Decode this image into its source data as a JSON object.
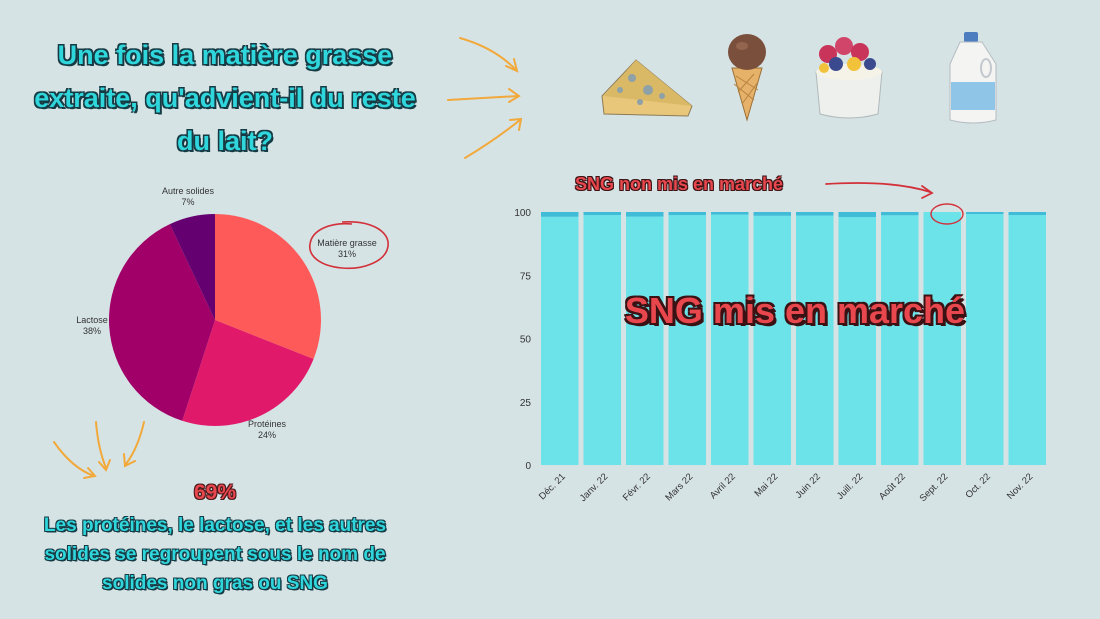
{
  "title": "Une fois la matière grasse extraite, qu'advient-il du reste du lait?",
  "summary": {
    "percent": "69%",
    "text": "Les protéines, le lactose, et les autres solides se regroupent sous le nom de solides non gras ou SNG"
  },
  "annotations": {
    "unsold_label": "SNG non mis en marché",
    "sold_label": "SNG mis en marché"
  },
  "icons": [
    "cheese-icon",
    "ice-cream-icon",
    "yogurt-parfait-icon",
    "milk-jug-icon"
  ],
  "colors": {
    "background": "#d6e3e5",
    "bar_main": "#6ce2e9",
    "bar_top": "#41bcd8",
    "title_teal": "#2fd6dc",
    "accent_red": "#e8474d",
    "arrow_orange": "#f2a93b"
  },
  "chart_data": [
    {
      "type": "pie",
      "slices": [
        {
          "label": "Matière grasse",
          "pct_label": "31%",
          "value": 31,
          "color": "#fe5a5a"
        },
        {
          "label": "Protéines",
          "pct_label": "24%",
          "value": 24,
          "color": "#e0196a"
        },
        {
          "label": "Lactose",
          "pct_label": "38%",
          "value": 38,
          "color": "#a00068"
        },
        {
          "label": "Autre solides",
          "pct_label": "7%",
          "value": 7,
          "color": "#650070"
        }
      ]
    },
    {
      "type": "bar",
      "stacked": true,
      "categories": [
        "Déc. 21",
        "Janv. 22",
        "Févr. 22",
        "Mars 22",
        "Avril 22",
        "Mai 22",
        "Juin 22",
        "Juill. 22",
        "Août 22",
        "Sept. 22",
        "Oct. 22",
        "Nov. 22"
      ],
      "series": [
        {
          "values": [
            98.1,
            98.8,
            98.2,
            98.8,
            99.0,
            98.5,
            98.6,
            98.0,
            98.7,
            100,
            99.2,
            98.8
          ]
        },
        {
          "values": [
            1.9,
            1.2,
            1.8,
            1.2,
            1.0,
            1.5,
            1.4,
            2.0,
            1.3,
            0,
            0.8,
            1.2
          ]
        }
      ],
      "ylim": [
        0,
        100
      ],
      "yticks": [
        0,
        25,
        50,
        75,
        100
      ],
      "grid": false
    }
  ]
}
